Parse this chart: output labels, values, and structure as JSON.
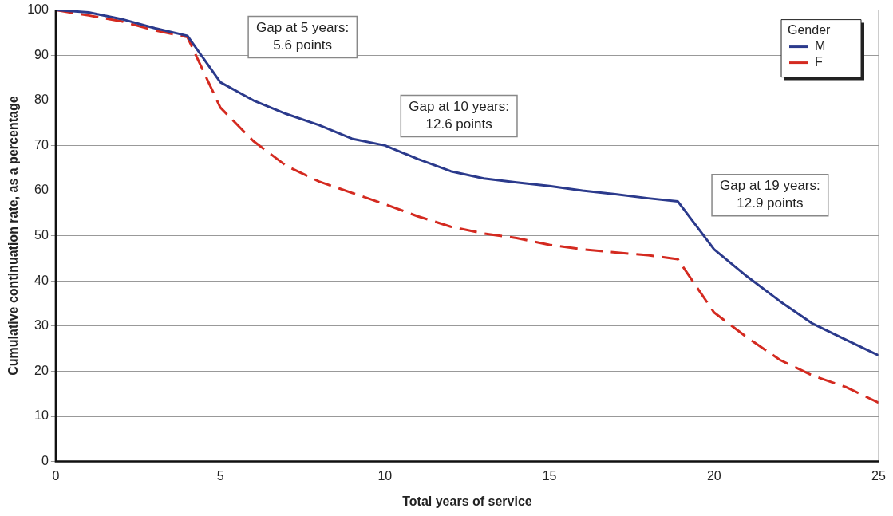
{
  "chart_data": {
    "type": "line",
    "xlabel": "Total years of service",
    "ylabel": "Cumulative continuation rate, as a percentage",
    "legend_title": "Gender",
    "series": [
      {
        "name": "M",
        "color": "#2b3a8c",
        "line_style": "solid",
        "x": [
          0,
          1,
          2,
          3,
          4,
          5,
          6,
          7,
          8,
          9,
          10,
          11,
          12,
          13,
          14,
          15,
          16,
          17,
          18,
          18.9,
          20,
          21,
          22,
          23,
          24,
          25
        ],
        "values": [
          100,
          99.5,
          98,
          96,
          94.3,
          84,
          80,
          77,
          74.5,
          71.5,
          70,
          67,
          64.3,
          62.7,
          61.8,
          61,
          60,
          59.2,
          58.3,
          57.6,
          47,
          41,
          35.5,
          30.5,
          27,
          23.5
        ]
      },
      {
        "name": "F",
        "color": "#d42a20",
        "line_style": "dashed",
        "x": [
          0,
          1,
          2,
          3,
          4,
          5,
          6,
          7,
          8,
          9,
          10,
          11,
          12,
          13,
          14,
          15,
          16,
          17,
          18,
          18.9,
          20,
          21,
          22,
          23,
          24,
          25
        ],
        "values": [
          100,
          98.8,
          97.5,
          95.5,
          94,
          78.4,
          71,
          65.5,
          62,
          59.5,
          57,
          54.3,
          52,
          50.5,
          49.5,
          48,
          47,
          46.3,
          45.7,
          44.8,
          33,
          27.5,
          22.5,
          19,
          16.5,
          13
        ]
      }
    ],
    "xlim": [
      0,
      25
    ],
    "xticks": [
      0,
      5,
      10,
      15,
      20,
      25
    ],
    "ylim": [
      0,
      100
    ],
    "yticks": [
      0,
      10,
      20,
      30,
      40,
      50,
      60,
      70,
      80,
      90,
      100
    ],
    "grid": "y",
    "legend": "top right",
    "marker": "none",
    "annotations": [
      "Gap at 5 years:\n5.6 points",
      "Gap at 10 years:\n12.6 points",
      "Gap at 19 years:\n12.9 points"
    ]
  }
}
